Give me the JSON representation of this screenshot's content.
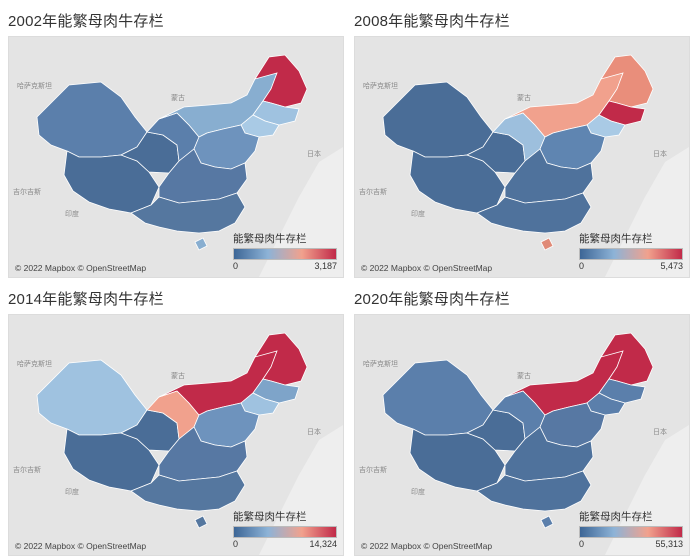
{
  "panels": [
    {
      "title": "2002年能繁母肉牛存栏",
      "legend_title": "能繁母肉牛存栏",
      "legend_min": "0",
      "legend_max": "3,187",
      "credit": "© 2022 Mapbox © OpenStreetMap",
      "map_labels": {
        "kazakh": "哈萨克斯坦",
        "mongolia": "蒙古",
        "kyrgyz": "吉尔吉斯",
        "india": "印度",
        "japan": "日本"
      },
      "colors": {
        "xinjiang": "#5b7fab",
        "tibet": "#4a6d97",
        "qinghai": "#4a6d97",
        "gansu": "#5b7fab",
        "inner_mongolia": "#88aed0",
        "heilongjiang": "#c12a49",
        "jilin": "#9fc2e0",
        "liaoning": "#a9cae5",
        "north": "#6e93bd",
        "central": "#5778a3",
        "south": "#55779f",
        "hainan": "#88aed0"
      }
    },
    {
      "title": "2008年能繁母肉牛存栏",
      "legend_title": "能繁母肉牛存栏",
      "legend_min": "0",
      "legend_max": "5,473",
      "credit": "© 2022 Mapbox © OpenStreetMap",
      "map_labels": {
        "kazakh": "哈萨克斯坦",
        "mongolia": "蒙古",
        "kyrgyz": "吉尔吉斯",
        "india": "印度",
        "japan": "日本"
      },
      "colors": {
        "xinjiang": "#4a6d97",
        "tibet": "#4a6d97",
        "qinghai": "#4a6d97",
        "gansu": "#9dbfdd",
        "inner_mongolia": "#f1a18d",
        "heilongjiang": "#e98e7b",
        "jilin": "#c12a49",
        "liaoning": "#a9cae5",
        "north": "#5f85b1",
        "central": "#4f729c",
        "south": "#4f729c",
        "hainan": "#e08a77"
      }
    },
    {
      "title": "2014年能繁母肉牛存栏",
      "legend_title": "能繁母肉牛存栏",
      "legend_min": "0",
      "legend_max": "14,324",
      "credit": "© 2022 Mapbox © OpenStreetMap",
      "map_labels": {
        "kazakh": "哈萨克斯坦",
        "mongolia": "蒙古",
        "kyrgyz": "吉尔吉斯",
        "india": "印度",
        "japan": "日本"
      },
      "colors": {
        "xinjiang": "#9fc2e0",
        "tibet": "#4a6d97",
        "qinghai": "#4a6d97",
        "gansu": "#f1a18d",
        "inner_mongolia": "#c12a49",
        "heilongjiang": "#c12a49",
        "jilin": "#7ea4c9",
        "liaoning": "#9fc2e0",
        "north": "#6e93bd",
        "central": "#5778a3",
        "south": "#55779f",
        "hainan": "#55779f"
      }
    },
    {
      "title": "2020年能繁母肉牛存栏",
      "legend_title": "能繁母肉牛存栏",
      "legend_min": "0",
      "legend_max": "55,313",
      "credit": "© 2022 Mapbox © OpenStreetMap",
      "map_labels": {
        "kazakh": "哈萨克斯坦",
        "mongolia": "蒙古",
        "kyrgyz": "吉尔吉斯",
        "india": "印度",
        "japan": "日本"
      },
      "colors": {
        "xinjiang": "#5b7fab",
        "tibet": "#4a6d97",
        "qinghai": "#4a6d97",
        "gansu": "#5b7fab",
        "inner_mongolia": "#c12a49",
        "heilongjiang": "#c12a49",
        "jilin": "#5b7fab",
        "liaoning": "#5b7fab",
        "north": "#5778a3",
        "central": "#4f729c",
        "south": "#4f729c",
        "hainan": "#5b7fab"
      }
    }
  ],
  "legend_gradient": [
    "#3d6696",
    "#8db3d7",
    "#f1a18d",
    "#c12a49"
  ]
}
